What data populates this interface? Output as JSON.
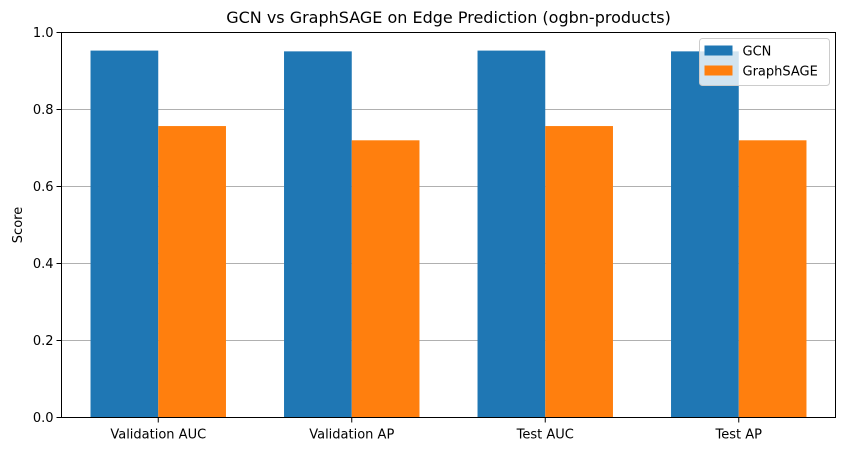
{
  "chart_data": {
    "type": "bar",
    "title": "GCN vs GraphSAGE on Edge Prediction (ogbn-products)",
    "xlabel": "",
    "ylabel": "Score",
    "ylim": [
      0,
      1.0
    ],
    "yticks": [
      "0.0",
      "0.2",
      "0.4",
      "0.6",
      "0.8",
      "1.0"
    ],
    "categories": [
      "Validation AUC",
      "Validation AP",
      "Test AUC",
      "Test AP"
    ],
    "series": [
      {
        "name": "GCN",
        "color": "#1f77b4",
        "values": [
          0.953,
          0.951,
          0.953,
          0.951
        ]
      },
      {
        "name": "GraphSAGE",
        "color": "#ff7f0e",
        "values": [
          0.757,
          0.72,
          0.757,
          0.72
        ]
      }
    ],
    "grid": "horizontal",
    "legend_position": "top-right"
  }
}
